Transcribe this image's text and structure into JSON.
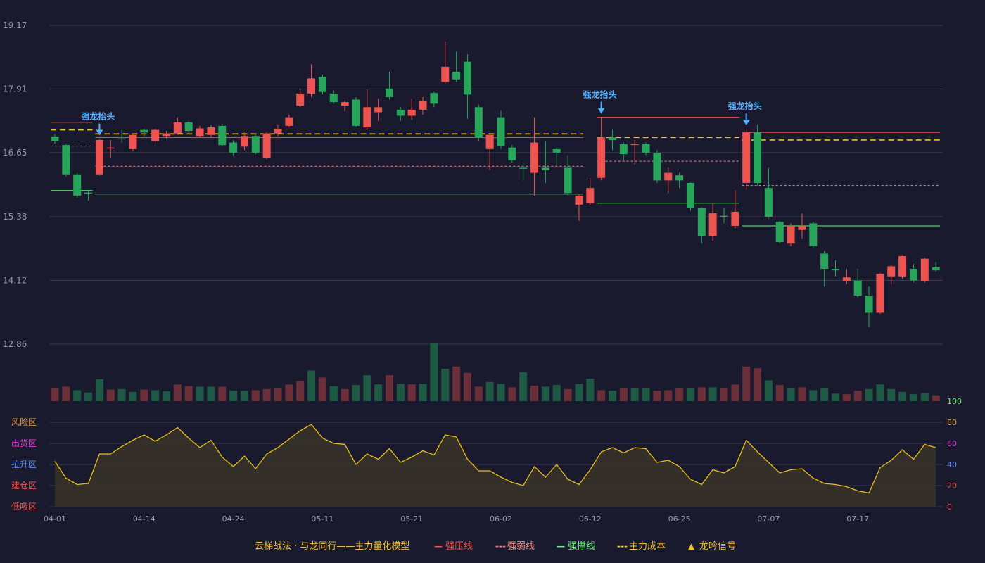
{
  "chart_data": {
    "type": "candlestick",
    "price_axis": {
      "ticks": [
        19.17,
        17.91,
        16.65,
        15.38,
        14.12,
        12.86
      ],
      "range": [
        12.86,
        19.17
      ]
    },
    "x_tick_labels": [
      {
        "index": 0,
        "label": "04-01"
      },
      {
        "index": 8,
        "label": "04-14"
      },
      {
        "index": 16,
        "label": "04-24"
      },
      {
        "index": 24,
        "label": "05-11"
      },
      {
        "index": 32,
        "label": "05-21"
      },
      {
        "index": 40,
        "label": "06-02"
      },
      {
        "index": 48,
        "label": "06-12"
      },
      {
        "index": 56,
        "label": "06-25"
      },
      {
        "index": 64,
        "label": "07-07"
      },
      {
        "index": 72,
        "label": "07-17"
      }
    ],
    "candles": [
      [
        16.97,
        16.88,
        16.83,
        17.02
      ],
      [
        16.8,
        16.22,
        16.18,
        16.82
      ],
      [
        16.22,
        15.8,
        15.76,
        16.24
      ],
      [
        15.86,
        15.84,
        15.7,
        15.9
      ],
      [
        16.22,
        16.9,
        16.2,
        16.92
      ],
      [
        16.73,
        16.75,
        16.55,
        16.9
      ],
      [
        16.93,
        16.92,
        16.85,
        17.1
      ],
      [
        16.72,
        17.0,
        16.68,
        17.02
      ],
      [
        17.1,
        17.05,
        16.98,
        17.12
      ],
      [
        16.88,
        17.1,
        16.85,
        17.12
      ],
      [
        16.98,
        17.03,
        16.93,
        17.08
      ],
      [
        17.03,
        17.25,
        17.0,
        17.35
      ],
      [
        17.25,
        17.08,
        17.02,
        17.27
      ],
      [
        16.98,
        17.13,
        16.95,
        17.18
      ],
      [
        17.0,
        17.15,
        16.96,
        17.2
      ],
      [
        17.18,
        16.8,
        16.77,
        17.22
      ],
      [
        16.85,
        16.65,
        16.6,
        16.9
      ],
      [
        16.77,
        16.98,
        16.7,
        17.05
      ],
      [
        16.98,
        16.65,
        16.62,
        17.02
      ],
      [
        16.55,
        17.03,
        16.52,
        17.05
      ],
      [
        17.03,
        17.12,
        16.98,
        17.2
      ],
      [
        17.18,
        17.35,
        17.15,
        17.4
      ],
      [
        17.58,
        17.82,
        17.55,
        17.92
      ],
      [
        17.82,
        18.12,
        17.75,
        18.4
      ],
      [
        18.15,
        17.85,
        17.8,
        18.2
      ],
      [
        17.82,
        17.65,
        17.62,
        17.88
      ],
      [
        17.58,
        17.65,
        17.47,
        17.68
      ],
      [
        17.7,
        17.18,
        17.15,
        17.75
      ],
      [
        17.15,
        17.55,
        17.1,
        17.9
      ],
      [
        17.45,
        17.55,
        17.28,
        17.72
      ],
      [
        17.92,
        17.75,
        17.7,
        18.25
      ],
      [
        17.5,
        17.38,
        17.28,
        17.55
      ],
      [
        17.38,
        17.5,
        17.3,
        17.72
      ],
      [
        17.5,
        17.68,
        17.4,
        17.75
      ],
      [
        17.83,
        17.62,
        17.55,
        17.85
      ],
      [
        18.05,
        18.35,
        18.0,
        18.85
      ],
      [
        18.25,
        18.1,
        18.05,
        18.65
      ],
      [
        18.45,
        17.8,
        17.32,
        18.6
      ],
      [
        17.55,
        16.95,
        16.88,
        17.6
      ],
      [
        16.72,
        17.0,
        16.3,
        17.02
      ],
      [
        17.35,
        16.78,
        16.72,
        17.48
      ],
      [
        16.75,
        16.5,
        16.45,
        16.8
      ],
      [
        16.35,
        16.33,
        16.1,
        16.45
      ],
      [
        16.25,
        16.85,
        15.8,
        17.35
      ],
      [
        16.35,
        16.3,
        16.05,
        16.88
      ],
      [
        16.72,
        16.65,
        16.4,
        16.75
      ],
      [
        16.35,
        15.85,
        15.8,
        16.6
      ],
      [
        15.62,
        15.8,
        15.3,
        15.82
      ],
      [
        15.65,
        15.95,
        15.62,
        16.15
      ],
      [
        16.15,
        16.95,
        16.1,
        17.35
      ],
      [
        16.95,
        16.9,
        16.7,
        17.1
      ],
      [
        16.82,
        16.62,
        16.5,
        16.85
      ],
      [
        16.8,
        16.82,
        16.42,
        16.9
      ],
      [
        16.82,
        16.65,
        16.6,
        16.85
      ],
      [
        16.65,
        16.1,
        16.05,
        16.7
      ],
      [
        16.1,
        16.25,
        15.85,
        16.35
      ],
      [
        16.2,
        16.1,
        15.95,
        16.25
      ],
      [
        16.05,
        15.55,
        15.5,
        16.07
      ],
      [
        15.55,
        15.0,
        14.85,
        15.57
      ],
      [
        15.0,
        15.45,
        14.9,
        15.65
      ],
      [
        15.4,
        15.38,
        15.25,
        15.55
      ],
      [
        15.2,
        15.48,
        15.15,
        15.9
      ],
      [
        16.05,
        17.05,
        15.92,
        17.12
      ],
      [
        17.05,
        16.05,
        16.0,
        17.2
      ],
      [
        15.95,
        15.38,
        15.35,
        16.35
      ],
      [
        15.28,
        14.88,
        14.85,
        15.3
      ],
      [
        14.85,
        15.2,
        14.8,
        15.25
      ],
      [
        15.12,
        15.2,
        14.95,
        15.45
      ],
      [
        15.25,
        14.8,
        14.78,
        15.28
      ],
      [
        14.65,
        14.35,
        14.0,
        14.7
      ],
      [
        14.35,
        14.32,
        14.2,
        14.52
      ],
      [
        14.1,
        14.18,
        14.05,
        14.35
      ],
      [
        14.12,
        13.82,
        13.78,
        14.35
      ],
      [
        13.82,
        13.48,
        13.2,
        14.0
      ],
      [
        13.48,
        14.25,
        13.46,
        14.27
      ],
      [
        14.2,
        14.4,
        14.05,
        14.42
      ],
      [
        14.2,
        14.6,
        14.15,
        14.62
      ],
      [
        14.35,
        14.12,
        14.08,
        14.45
      ],
      [
        14.1,
        14.55,
        14.08,
        14.57
      ],
      [
        14.38,
        14.32,
        14.3,
        14.48
      ]
    ],
    "volume_bars": [
      [
        0.22,
        "down"
      ],
      [
        0.25,
        "down"
      ],
      [
        0.19,
        "up"
      ],
      [
        0.15,
        "up"
      ],
      [
        0.38,
        "up"
      ],
      [
        0.2,
        "down"
      ],
      [
        0.21,
        "up"
      ],
      [
        0.16,
        "up"
      ],
      [
        0.2,
        "down"
      ],
      [
        0.19,
        "up"
      ],
      [
        0.17,
        "up"
      ],
      [
        0.29,
        "down"
      ],
      [
        0.26,
        "down"
      ],
      [
        0.25,
        "up"
      ],
      [
        0.25,
        "up"
      ],
      [
        0.25,
        "down"
      ],
      [
        0.18,
        "up"
      ],
      [
        0.18,
        "up"
      ],
      [
        0.19,
        "down"
      ],
      [
        0.21,
        "down"
      ],
      [
        0.22,
        "down"
      ],
      [
        0.29,
        "down"
      ],
      [
        0.35,
        "down"
      ],
      [
        0.53,
        "up"
      ],
      [
        0.41,
        "down"
      ],
      [
        0.26,
        "up"
      ],
      [
        0.21,
        "down"
      ],
      [
        0.28,
        "up"
      ],
      [
        0.45,
        "up"
      ],
      [
        0.29,
        "up"
      ],
      [
        0.45,
        "down"
      ],
      [
        0.3,
        "up"
      ],
      [
        0.29,
        "down"
      ],
      [
        0.3,
        "up"
      ],
      [
        1.0,
        "up"
      ],
      [
        0.56,
        "up"
      ],
      [
        0.6,
        "down"
      ],
      [
        0.49,
        "down"
      ],
      [
        0.25,
        "down"
      ],
      [
        0.33,
        "up"
      ],
      [
        0.3,
        "up"
      ],
      [
        0.24,
        "down"
      ],
      [
        0.5,
        "up"
      ],
      [
        0.27,
        "down"
      ],
      [
        0.25,
        "up"
      ],
      [
        0.28,
        "up"
      ],
      [
        0.21,
        "down"
      ],
      [
        0.3,
        "up"
      ],
      [
        0.39,
        "up"
      ],
      [
        0.19,
        "down"
      ],
      [
        0.18,
        "up"
      ],
      [
        0.22,
        "down"
      ],
      [
        0.22,
        "up"
      ],
      [
        0.22,
        "up"
      ],
      [
        0.18,
        "down"
      ],
      [
        0.19,
        "down"
      ],
      [
        0.22,
        "down"
      ],
      [
        0.22,
        "up"
      ],
      [
        0.24,
        "down"
      ],
      [
        0.24,
        "up"
      ],
      [
        0.22,
        "down"
      ],
      [
        0.29,
        "down"
      ],
      [
        0.6,
        "down"
      ],
      [
        0.57,
        "down"
      ],
      [
        0.36,
        "up"
      ],
      [
        0.28,
        "down"
      ],
      [
        0.22,
        "up"
      ],
      [
        0.24,
        "down"
      ],
      [
        0.19,
        "up"
      ],
      [
        0.22,
        "up"
      ],
      [
        0.13,
        "up"
      ],
      [
        0.12,
        "down"
      ],
      [
        0.18,
        "down"
      ],
      [
        0.21,
        "up"
      ],
      [
        0.29,
        "up"
      ],
      [
        0.21,
        "up"
      ],
      [
        0.16,
        "up"
      ],
      [
        0.12,
        "up"
      ],
      [
        0.14,
        "up"
      ],
      [
        0.1,
        "down"
      ]
    ],
    "oscillator": {
      "axis_ticks": [
        0,
        20,
        40,
        60,
        80,
        100
      ],
      "zone_labels": [
        "风险区",
        "出货区",
        "拉升区",
        "建仓区",
        "低吸区"
      ],
      "values": [
        43,
        27,
        21,
        22,
        50,
        50,
        57,
        63,
        68,
        62,
        68,
        75,
        65,
        56,
        63,
        47,
        38,
        48,
        36,
        50,
        56,
        64,
        72,
        78,
        65,
        60,
        59,
        40,
        50,
        45,
        55,
        42,
        47,
        53,
        49,
        68,
        66,
        45,
        34,
        34,
        28,
        23,
        20,
        38,
        28,
        40,
        26,
        21,
        35,
        52,
        56,
        51,
        56,
        55,
        42,
        44,
        38,
        26,
        21,
        35,
        32,
        38,
        63,
        52,
        42,
        32,
        35,
        36,
        27,
        22,
        21,
        19,
        15,
        13,
        37,
        44,
        54,
        45,
        59,
        56
      ]
    },
    "annotations": [
      {
        "index": 4,
        "text": "强龙抬头"
      },
      {
        "index": 49,
        "text": "强龙抬头"
      },
      {
        "index": 62,
        "text": "强龙抬头"
      }
    ],
    "level_lines": [
      {
        "kind": "pressure",
        "from": 0,
        "to": 3,
        "value": 17.25
      },
      {
        "kind": "weak",
        "from": 0,
        "to": 3,
        "value": 16.78
      },
      {
        "kind": "cost",
        "from": 0,
        "to": 3,
        "value": 17.1
      },
      {
        "kind": "support",
        "from": 0,
        "to": 3,
        "value": 15.9
      },
      {
        "kind": "pressure",
        "from": 4,
        "to": 47,
        "value": 16.95
      },
      {
        "kind": "weak",
        "from": 4,
        "to": 47,
        "value": 16.38
      },
      {
        "kind": "cost",
        "from": 4,
        "to": 47,
        "value": 17.02
      },
      {
        "kind": "support",
        "from": 4,
        "to": 47,
        "value": 15.83
      },
      {
        "kind": "pressure",
        "from": 49,
        "to": 61,
        "value": 17.35
      },
      {
        "kind": "weak",
        "from": 49,
        "to": 61,
        "value": 16.48
      },
      {
        "kind": "cost",
        "from": 49,
        "to": 61,
        "value": 16.95
      },
      {
        "kind": "support",
        "from": 49,
        "to": 61,
        "value": 15.65
      },
      {
        "kind": "pressure",
        "from": 62,
        "to": 79,
        "value": 17.05
      },
      {
        "kind": "weak",
        "from": 62,
        "to": 79,
        "value": 16.0
      },
      {
        "kind": "cost",
        "from": 62,
        "to": 79,
        "value": 16.9
      },
      {
        "kind": "support",
        "from": 62,
        "to": 79,
        "value": 15.2
      }
    ],
    "legend": {
      "placement": "bottom-center",
      "title": "云梯战法 · 与龙同行——主力量化模型",
      "items": [
        {
          "kind": "pressure",
          "marker": "—",
          "label": "强压线"
        },
        {
          "kind": "weak",
          "marker": "---",
          "label": "强弱线"
        },
        {
          "kind": "support",
          "marker": "—",
          "label": "强撑线"
        },
        {
          "kind": "cost",
          "marker": "---",
          "label": "主力成本"
        },
        {
          "kind": "signal",
          "marker": "▲",
          "label": "龙吟信号"
        }
      ]
    },
    "colors": {
      "up": "#ef5350",
      "down": "#26a65b",
      "grid": "#3a3a4e",
      "axis_text": "#9a9aac",
      "pressure": "#ef5350",
      "weak": "#f28b82",
      "support": "#69f07a",
      "cost": "#f0c419",
      "signal": "#4fb3ff",
      "oscillator_line": "#e8c10f",
      "oscillator_fill": "#3a3428",
      "legend_title": "#f0c419",
      "legend_signal": "#f0c419",
      "zone_risk": "#e0a040",
      "zone_distribute": "#e040e0",
      "zone_pull": "#5b8ff9",
      "zone_build": "#ef5350",
      "zone_buy": "#ef5350",
      "axis_100": "#69f07a",
      "axis_80": "#e0a040",
      "axis_60": "#e040e0",
      "axis_40": "#5b8ff9",
      "axis_20": "#ef5350",
      "axis_0": "#ef5350"
    }
  }
}
